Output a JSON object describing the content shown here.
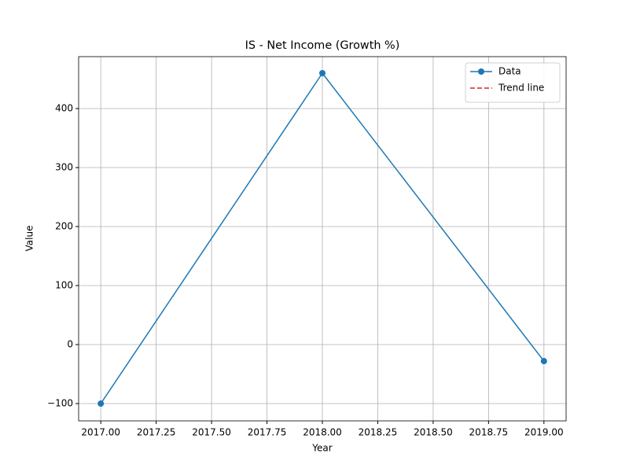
{
  "chart_data": {
    "type": "line",
    "title": "IS - Net Income (Growth %)",
    "x_label": "Year",
    "y_label": "Value",
    "x": [
      2017,
      2018,
      2019
    ],
    "series": [
      {
        "name": "Data",
        "color": "#1f77b4",
        "marker": "o",
        "linestyle": "solid",
        "values": [
          -100,
          460,
          -28
        ]
      },
      {
        "name": "Trend line",
        "color": "#d62728",
        "linestyle": "dashed",
        "values": [
          null,
          null,
          null
        ]
      }
    ],
    "xlim": [
      2016.9,
      2019.1
    ],
    "xticks": [
      {
        "value": 2017,
        "label": "2017.00"
      },
      {
        "value": 2017.25,
        "label": "2017.25"
      },
      {
        "value": 2017.5,
        "label": "2017.50"
      },
      {
        "value": 2017.75,
        "label": "2017.75"
      },
      {
        "value": 2018,
        "label": "2018.00"
      },
      {
        "value": 2018.25,
        "label": "2018.25"
      },
      {
        "value": 2018.5,
        "label": "2018.50"
      },
      {
        "value": 2018.75,
        "label": "2018.75"
      },
      {
        "value": 2019,
        "label": "2019.00"
      }
    ],
    "ylim": [
      -129.3,
      488
    ],
    "yticks": [
      {
        "value": -100,
        "label": "−100"
      },
      0,
      100,
      200,
      300,
      400
    ],
    "grid": true,
    "legend": "upper right"
  }
}
